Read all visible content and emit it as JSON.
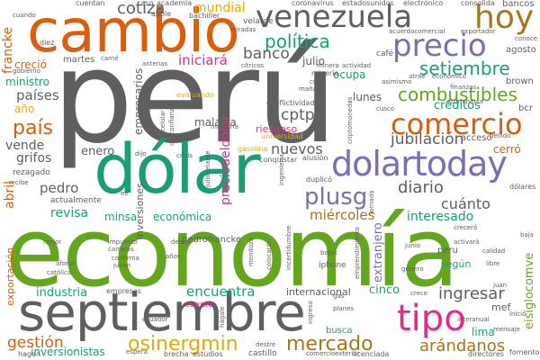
{
  "colors": {
    "gray": "#5f5f5f",
    "orange": "#d95f0e",
    "purple": "#7570b3",
    "teal": "#1b9e77",
    "green": "#66a61e",
    "pink": "#e7298a",
    "gold": "#e6ab02",
    "brown": "#a6761d"
  },
  "words": {
    "peru": "perú",
    "economia": "economía",
    "septiembre": "septiembre",
    "cambio": "cambio",
    "dolar": "dólar",
    "venezuela": "venezuela",
    "dolartoday": "dolartoday",
    "precio": "precio",
    "hoy": "hoy",
    "comercio": "comercio",
    "tipo": "tipo",
    "mercado": "mercado",
    "osinergmin": "osinergmin",
    "plusg": "plusg",
    "setiembre": "setiembre",
    "combustibles": "combustibles",
    "politica": "política",
    "diario": "diario",
    "pais": "país",
    "cotiza": "cotiza",
    "banco": "banco",
    "ingresar": "ingresar",
    "jubilacion": "jubilación",
    "arandanos": "arándanos",
    "gestion": "gestión",
    "cptpp": "cptpp",
    "mundial": "mundial",
    "iniciara": "iniciará",
    "francke": "francke",
    "paises": "países",
    "vende": "vende",
    "grifos": "grifos",
    "pedro": "pedro",
    "revisa": "revisa",
    "minsa": "minsa",
    "economica": "económica",
    "miercoles": "miércoles",
    "interesado": "interesado",
    "cuanto": "cuánto",
    "extranjero": "extranjero",
    "precioldeldolar": "preciodeldólar",
    "industria": "industria",
    "encuentra": "encuentra",
    "internacional": "internacional",
    "cinco": "cinco",
    "inversionistas": "inversionistas",
    "eisiglocomve": "eisiglocomve",
    "creditos": "créditos",
    "nuevos": "nuevos",
    "enero": "enero",
    "creci": "creció",
    "ministro": "ministro",
    "ano": "año",
    "malasia": "malasia",
    "empresarios": "empresarios",
    "julio": "julio",
    "riesgoso": "riesgoso",
    "ocupa": "ocupa",
    "lunes": "lunes",
    "martes": "martes",
    "lima": "lima",
    "abril": "abril",
    "exportacion": "exportación",
    "inversiones": "inversiones",
    "mef": "mef",
    "cerro": "cerró",
    "pedrofrancke": "pedrofrancke",
    "segun": "según",
    "acceso": "acceso",
    "cuenta": "cuenta",
    "agosto": "agosto",
    "brown": "brown",
    "bcr": "bcr",
    "bancos": "bancos",
    "peru_small": "peru",
    "busca": "busca",
    "iphone": "iphone",
    "empresas": "empresas",
    "rezagado": "rezagado",
    "actualmente": "actualmente",
    "velarde": "velarde",
    "cafe": "café",
    "evaluando": "evaluando",
    "gasolina": "gasolina",
    "criptomonedas": "criptomonedas",
    "mineria": "minería",
    "conflictividad": "conflictividad",
    "universidad": "universidad",
    "alusion": "alusión",
    "conquistar": "conquistar",
    "duplico": "duplicó",
    "dolares": "dólares",
    "hagan": "hagan",
    "brecha": "brecha",
    "estudios": "estudios",
    "castillo": "castillo",
    "fomento": "fomento",
    "licenciada": "licenciada",
    "directores": "directores",
    "comerciexterior": "comercioexterior",
    "coronavirus": "coronavirus",
    "estadosunidos": "estadosunidos",
    "electronico": "electrónico",
    "consolida": "consolida",
    "cuentan": "cuentan",
    "caso": "caso",
    "academia": "academia",
    "bachiller": "bachiller",
    "apple": "apple",
    "cuando": "cuando",
    "diez": "diez",
    "gobierno": "gobierno",
    "miradas": "miradas",
    "acuerdocomercial": "acuerdocomercial",
    "exportador": "exportador",
    "conoce": "conoce",
    "carne": "carné",
    "antenas": "antenas",
    "citricos": "cítricos",
    "minera": "minera",
    "actividad": "actividad",
    "atrae": "atrae",
    "economico": "económico",
    "asimismo": "asimismo",
    "manana": "mañana",
    "cual": "cuál",
    "ecommerce": "ecommerce",
    "finanzas": "finanzas",
    "maestria": "maestría",
    "celular": "celular",
    "descontianza": "desconfianza",
    "crisis": "crisis",
    "juliovelarde": "juliovelarde",
    "cusco": "cusco",
    "bellido": "bellido",
    "ingenieria": "ingeniería",
    "dijo": "dijo",
    "recibe": "recibe",
    "impuesto": "impuesto",
    "carreras": "carreras",
    "anos": "años",
    "confirma": "confirma",
    "julian": "julián",
    "ee": "ee",
    "gas": "gas",
    "bajos": "bajos",
    "deben": "deben",
    "planes": "planes",
    "junio": "junio",
    "mejor": "mejor",
    "genero": "género",
    "aforos": "aforos",
    "catolica": "católica",
    "mendoza": "mendoza",
    "colocaran": "colocarán",
    "jornada": "jornada",
    "activara": "activará",
    "calidad": "calidad",
    "crecera": "crecerá",
    "libre": "libre",
    "ecuador": "ecuador",
    "espera": "espera",
    "destre": "destre",
    "hagale": "hágale",
    "inicio": "inicio",
    "mensaje": "mensaje",
    "interanual": "interanual",
    "baja": "baja",
    "crece": "crece",
    "ingreso": "ingreso",
    "juan": "juan",
    "emprendimiento": "emprendimiento",
    "incertidumbre": "incertidumbre"
  }
}
